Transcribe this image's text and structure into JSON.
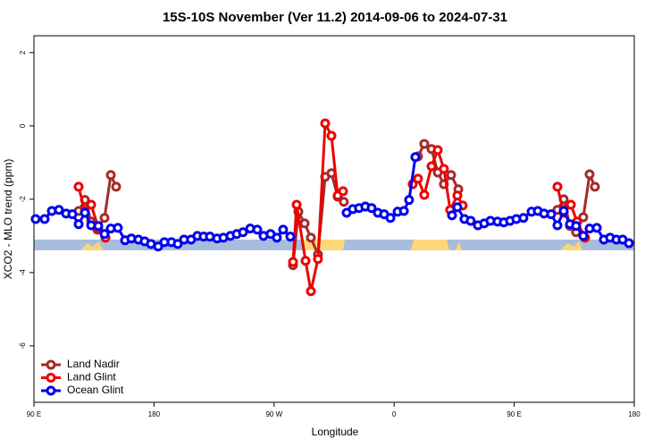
{
  "chart_data": {
    "type": "line",
    "title": "15S-10S November (Ver 11.2)   2014-09-06 to 2024-07-31",
    "xlabel": "Longitude",
    "ylabel": "XCO2 - MLO trend (ppm)",
    "xlim": [
      90,
      540
    ],
    "ylim": [
      -7.54,
      2.46
    ],
    "xticks": [
      {
        "value": 90,
        "label": "90 E"
      },
      {
        "value": 180,
        "label": "180"
      },
      {
        "value": 270,
        "label": "90 W"
      },
      {
        "value": 360,
        "label": "0"
      },
      {
        "value": 450,
        "label": "90 E"
      },
      {
        "value": 540,
        "label": "180"
      }
    ],
    "yticks": [
      2,
      0,
      -2,
      -4,
      -6
    ],
    "legend": "bottomleft",
    "series": [
      {
        "name": "Land Nadir",
        "color": "#a52a2a",
        "x": [
          123.5,
          128.2,
          132.9,
          137.5,
          142.9,
          147.6,
          151.6,
          null,
          284.2,
          288.2,
          292.9,
          297.6,
          302.9,
          308.3,
          313.0,
          317.7,
          322.3,
          null,
          377.9,
          382.6,
          388.0,
          392.7,
          397.3,
          402.7,
          408.1,
          null,
          482.4,
          487.1,
          491.8,
          496.4,
          501.8,
          506.5,
          510.5
        ],
        "values": [
          -2.32,
          -2.02,
          -2.61,
          -2.83,
          -2.51,
          -1.34,
          -1.66,
          null,
          -3.8,
          -2.34,
          -2.66,
          -3.05,
          -3.51,
          -1.39,
          -1.29,
          -1.93,
          -2.07,
          null,
          -0.83,
          -0.49,
          -0.63,
          -1.27,
          -1.59,
          -1.34,
          -1.73,
          null,
          -2.29,
          -2.0,
          -2.73,
          -2.9,
          -2.49,
          -1.32,
          -1.66
        ]
      },
      {
        "name": "Land Glint",
        "color": "#ee0000",
        "x": [
          123.5,
          128.2,
          132.9,
          138.2,
          143.6,
          null,
          284.2,
          286.9,
          293.6,
          297.6,
          302.9,
          308.3,
          313.0,
          317.7,
          321.7,
          null,
          373.9,
          377.9,
          382.6,
          388.0,
          392.7,
          397.3,
          402.0,
          407.4,
          411.4,
          null,
          482.4,
          487.1,
          492.5,
          497.1,
          503.1
        ],
        "values": [
          -1.66,
          -2.34,
          -2.15,
          -2.78,
          -3.05,
          null,
          -3.71,
          -2.15,
          -3.68,
          -4.51,
          -3.63,
          0.07,
          -0.27,
          -1.9,
          -1.78,
          null,
          -1.59,
          -1.44,
          -1.88,
          -1.1,
          -0.66,
          -1.17,
          -2.29,
          -1.9,
          -2.17,
          null,
          -1.66,
          -2.37,
          -2.15,
          -2.61,
          -3.05
        ]
      },
      {
        "name": "Ocean Glint",
        "color": "#0000ee",
        "x": [
          91.3,
          98.0,
          103.4,
          108.7,
          114.1,
          118.8,
          123.5,
          128.2,
          132.9,
          138.2,
          142.9,
          147.6,
          152.9,
          158.3,
          163.0,
          168.3,
          173.0,
          177.7,
          183.1,
          187.8,
          193.1,
          197.8,
          202.5,
          207.8,
          212.5,
          217.2,
          221.9,
          227.3,
          232.0,
          237.3,
          242.0,
          246.7,
          252.1,
          257.4,
          262.1,
          267.4,
          272.1,
          276.8,
          282.2,
          null,
          324.4,
          329.0,
          333.7,
          338.4,
          343.1,
          347.8,
          352.5,
          357.2,
          362.6,
          367.3,
          371.2,
          375.9,
          null,
          403.4,
          407.4,
          412.7,
          417.4,
          422.8,
          427.5,
          432.2,
          437.5,
          442.2,
          446.9,
          451.6,
          456.9,
          463.0,
          467.7,
          472.4,
          477.7,
          482.4,
          487.1,
          491.8,
          496.4,
          501.8,
          506.5,
          511.9,
          517.2,
          521.9,
          526.6,
          531.3,
          536.0
        ],
        "values": [
          -2.54,
          -2.54,
          -2.32,
          -2.29,
          -2.39,
          -2.41,
          -2.68,
          -2.37,
          -2.71,
          -2.73,
          -2.95,
          -2.8,
          -2.78,
          -3.12,
          -3.07,
          -3.1,
          -3.15,
          -3.22,
          -3.29,
          -3.17,
          -3.17,
          -3.22,
          -3.1,
          -3.1,
          -3.0,
          -3.02,
          -3.02,
          -3.07,
          -3.05,
          -3.0,
          -2.95,
          -2.9,
          -2.8,
          -2.83,
          -3.0,
          -2.95,
          -3.05,
          -2.83,
          -3.02,
          null,
          -2.37,
          -2.27,
          -2.24,
          -2.2,
          -2.24,
          -2.37,
          -2.41,
          -2.51,
          -2.34,
          -2.32,
          -2.02,
          -0.85,
          null,
          -2.44,
          -2.22,
          -2.54,
          -2.59,
          -2.71,
          -2.66,
          -2.59,
          -2.61,
          -2.63,
          -2.59,
          -2.54,
          -2.51,
          -2.34,
          -2.32,
          -2.39,
          -2.41,
          -2.71,
          -2.32,
          -2.68,
          -2.73,
          -3.0,
          -2.8,
          -2.78,
          -3.1,
          -3.05,
          -3.1,
          -3.1,
          -3.2
        ]
      }
    ]
  }
}
